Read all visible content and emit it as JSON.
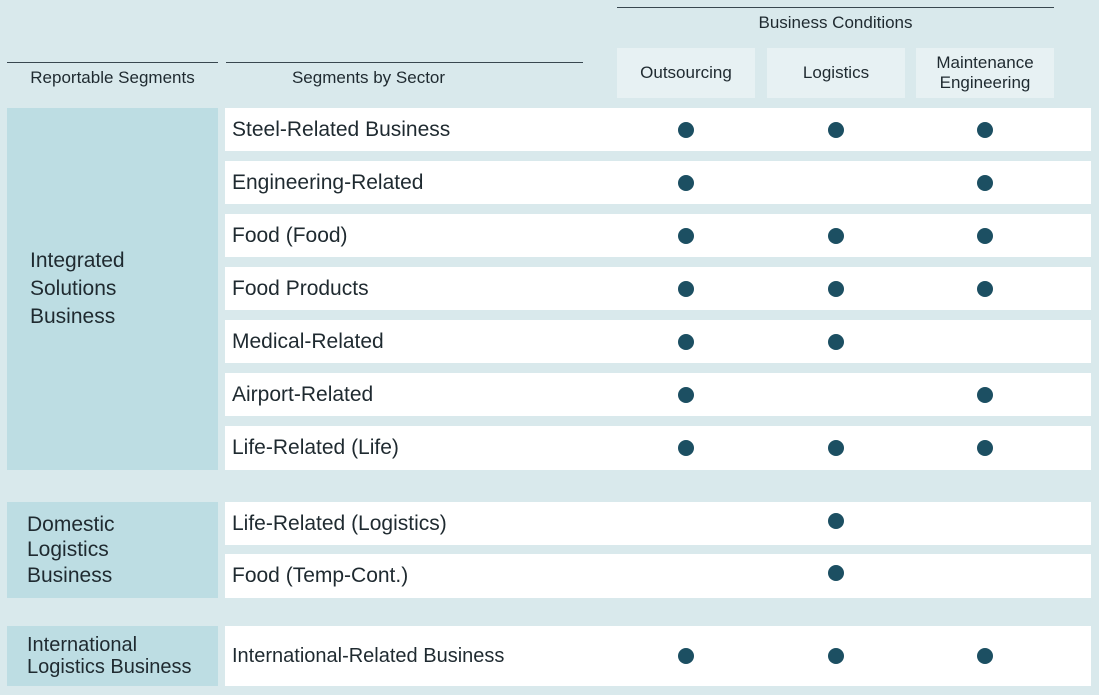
{
  "header": {
    "business_conditions": "Business Conditions",
    "reportable_segments": "Reportable Segments",
    "segments_by_sector": "Segments by Sector",
    "conditions": [
      "Outsourcing",
      "Logistics",
      "Maintenance Engineering"
    ]
  },
  "segments": [
    {
      "name": "Integrated Solutions Business",
      "name_lines": [
        "Integrated",
        "Solutions",
        "Business"
      ]
    },
    {
      "name": "Domestic Logistics Business",
      "name_lines": [
        "Domestic",
        "Logistics",
        "Business"
      ]
    },
    {
      "name": "International Logistics Business",
      "name_lines": [
        "International",
        "Logistics Business"
      ]
    }
  ],
  "rows": [
    {
      "sector": "Steel-Related Business",
      "outsourcing": true,
      "logistics": true,
      "maintenance_engineering": true
    },
    {
      "sector": "Engineering-Related",
      "outsourcing": true,
      "logistics": false,
      "maintenance_engineering": true
    },
    {
      "sector": "Food (Food)",
      "outsourcing": true,
      "logistics": true,
      "maintenance_engineering": true
    },
    {
      "sector": "Food Products",
      "outsourcing": true,
      "logistics": true,
      "maintenance_engineering": true
    },
    {
      "sector": "Medical-Related",
      "outsourcing": true,
      "logistics": true,
      "maintenance_engineering": false
    },
    {
      "sector": "Airport-Related",
      "outsourcing": true,
      "logistics": false,
      "maintenance_engineering": true
    },
    {
      "sector": "Life-Related (Life)",
      "outsourcing": true,
      "logistics": true,
      "maintenance_engineering": true
    },
    {
      "sector": "Life-Related (Logistics)",
      "outsourcing": false,
      "logistics": true,
      "maintenance_engineering": false
    },
    {
      "sector": "Food (Temp-Cont.)",
      "outsourcing": false,
      "logistics": true,
      "maintenance_engineering": false
    },
    {
      "sector": "International-Related Business",
      "outsourcing": true,
      "logistics": true,
      "maintenance_engineering": true
    }
  ],
  "colors": {
    "background": "#d9e9ec",
    "segment_fill": "#bddde3",
    "row_fill": "#ffffff",
    "header_fill": "#e7f1f3",
    "dot": "#1c4f62"
  }
}
